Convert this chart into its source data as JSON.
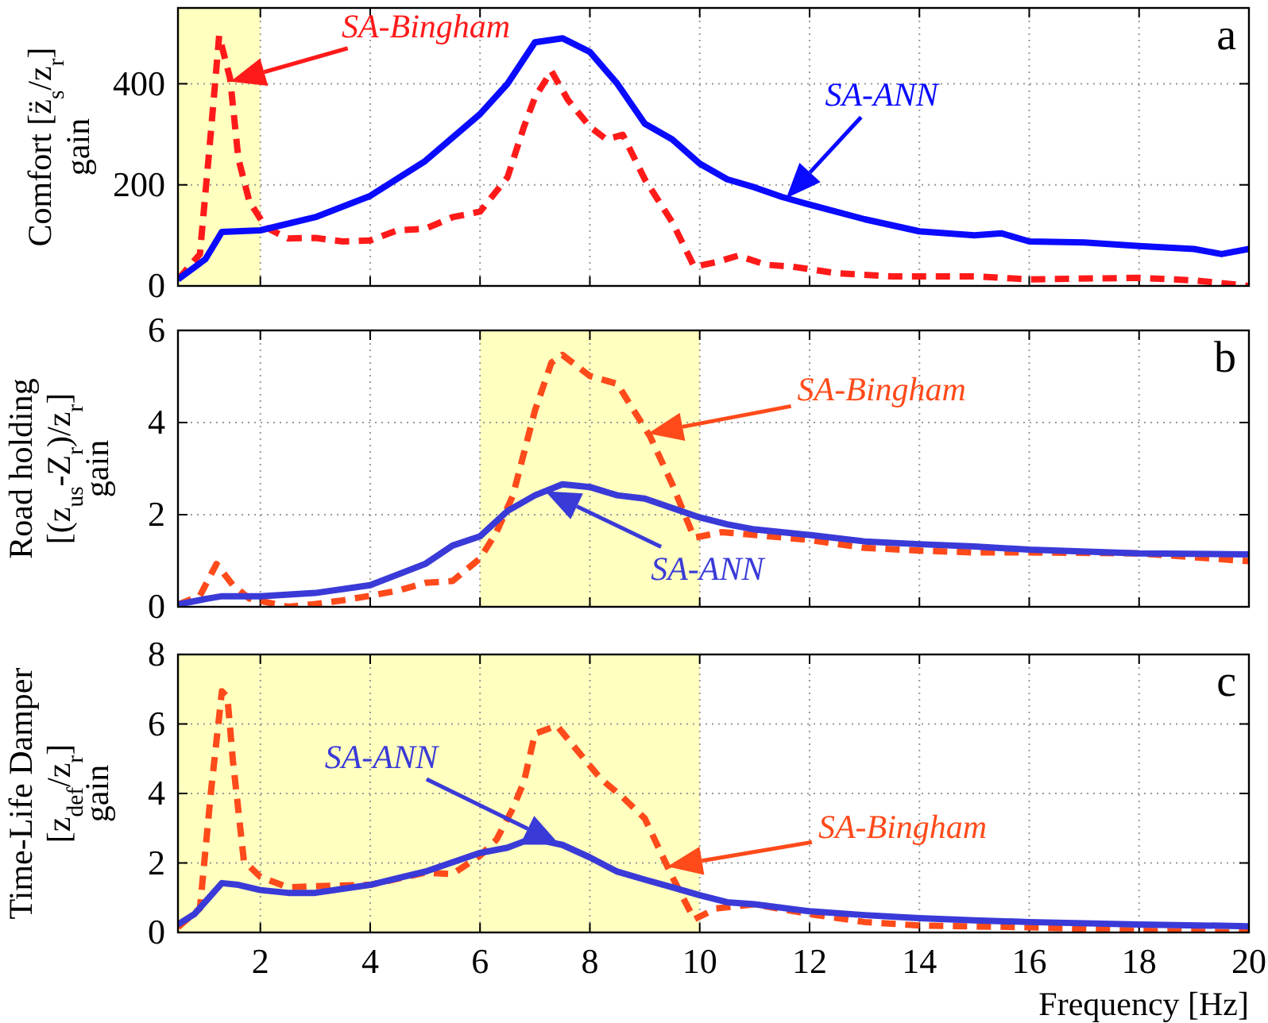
{
  "chart_data": [
    {
      "type": "line",
      "title": "a",
      "ylabel": "Comfort [z̈$_{s}$/z$_{r}$]\ngain",
      "xlim": [
        0.5,
        20
      ],
      "xticks": [
        2,
        4,
        6,
        8,
        10,
        12,
        14,
        16,
        18,
        20
      ],
      "ylim": [
        0,
        550
      ],
      "yticks": [
        0,
        200,
        400
      ],
      "grid": true,
      "tick_labels": "y",
      "bands": [
        {
          "axis": "x",
          "from": 0.5,
          "to": 2,
          "color": "#ffffc0"
        }
      ],
      "series": [
        {
          "name": "SA-Bingham",
          "color": "#ff1a1a",
          "line_style": "dashed",
          "x": [
            0.5,
            0.9,
            1.1,
            1.25,
            1.45,
            1.6,
            1.8,
            2.1,
            2.5,
            3,
            3.5,
            4,
            4.5,
            5,
            5.5,
            6,
            6.5,
            6.8,
            7,
            7.3,
            7.6,
            8,
            8.3,
            8.6,
            9,
            9.5,
            9.9,
            10.3,
            10.7,
            11.2,
            11.7,
            12.5,
            13.5,
            15,
            16,
            18,
            19,
            20
          ],
          "values": [
            13,
            63,
            305,
            495,
            410,
            252,
            167,
            116,
            94,
            95,
            88,
            90,
            110,
            113,
            136,
            147,
            215,
            315,
            373,
            425,
            368,
            315,
            290,
            299,
            211,
            126,
            38,
            47,
            60,
            42,
            38,
            25,
            19,
            19,
            13,
            16,
            11,
            0
          ]
        },
        {
          "name": "SA-ANN",
          "color": "#0a0aff",
          "line_style": "solid",
          "x": [
            0.5,
            1,
            1.3,
            2,
            3,
            4,
            5,
            6,
            6.5,
            7,
            7.5,
            8,
            8.5,
            9,
            9.5,
            10,
            10.5,
            11,
            11.5,
            12,
            13,
            14,
            15,
            15.5,
            16,
            17,
            18,
            19,
            19.5,
            20
          ],
          "values": [
            13,
            53,
            107,
            110,
            136,
            178,
            247,
            340,
            400,
            482,
            490,
            463,
            400,
            321,
            290,
            242,
            211,
            195,
            176,
            161,
            132,
            108,
            100,
            104,
            88,
            86,
            79,
            73,
            63,
            73
          ]
        }
      ]
    },
    {
      "type": "line",
      "title": "b",
      "ylabel": "Road holding\n[(z$_{us}$-Z$_{r}$)/z$_{r}$]\ngain",
      "xlim": [
        0.5,
        20
      ],
      "xticks": [
        2,
        4,
        6,
        8,
        10,
        12,
        14,
        16,
        18,
        20
      ],
      "ylim": [
        0,
        6
      ],
      "yticks": [
        0,
        2,
        4,
        6
      ],
      "grid": true,
      "tick_labels": "y",
      "bands": [
        {
          "axis": "x",
          "from": 6,
          "to": 10,
          "color": "#ffffc0"
        }
      ],
      "series": [
        {
          "name": "SA-Bingham",
          "color": "#ff4a1a",
          "line_style": "dashed",
          "x": [
            0.5,
            0.9,
            1.2,
            1.5,
            1.8,
            2.5,
            3,
            3.5,
            4,
            4.5,
            5,
            5.5,
            6,
            6.3,
            6.6,
            6.8,
            7,
            7.3,
            7.5,
            8,
            8.5,
            8.8,
            9.1,
            9.5,
            9.9,
            10.4,
            11,
            12,
            13,
            14,
            15,
            16,
            18,
            20
          ],
          "values": [
            0.05,
            0.24,
            0.93,
            0.47,
            0.18,
            0,
            0.06,
            0.14,
            0.24,
            0.35,
            0.52,
            0.56,
            1.05,
            1.62,
            2.42,
            3.34,
            4.26,
            5.3,
            5.47,
            5.01,
            4.84,
            4.26,
            3.69,
            2.66,
            1.5,
            1.62,
            1.56,
            1.45,
            1.28,
            1.22,
            1.18,
            1.18,
            1.16,
            0.99
          ]
        },
        {
          "name": "SA-ANN",
          "color": "#3a3ad8",
          "line_style": "solid",
          "x": [
            0.5,
            1,
            1.3,
            2,
            3,
            4,
            5,
            5.5,
            6,
            6.5,
            7,
            7.5,
            8,
            8.5,
            9,
            10,
            10.5,
            11,
            12,
            13,
            14,
            15,
            16,
            18,
            20
          ],
          "values": [
            0.05,
            0.17,
            0.23,
            0.23,
            0.3,
            0.47,
            0.93,
            1.33,
            1.53,
            2.08,
            2.42,
            2.66,
            2.6,
            2.42,
            2.35,
            1.94,
            1.79,
            1.68,
            1.56,
            1.42,
            1.36,
            1.31,
            1.24,
            1.16,
            1.14
          ]
        }
      ]
    },
    {
      "type": "line",
      "title": "c",
      "xlabel": "Frequency [Hz]",
      "ylabel": "Time-Life Damper\n[z$_{def}$/z$_{r}$]\ngain",
      "xlim": [
        0.5,
        20
      ],
      "xticks": [
        2,
        4,
        6,
        8,
        10,
        12,
        14,
        16,
        18,
        20
      ],
      "ylim": [
        0,
        8
      ],
      "yticks": [
        0,
        2,
        4,
        6,
        8
      ],
      "grid": true,
      "bands": [
        {
          "axis": "x",
          "from": 0.5,
          "to": 10,
          "color": "#ffffc0"
        }
      ],
      "series": [
        {
          "name": "SA-Bingham",
          "color": "#ff4a1a",
          "line_style": "dashed",
          "x": [
            0.5,
            0.9,
            1.1,
            1.3,
            1.4,
            1.5,
            1.7,
            2,
            2.5,
            3,
            4,
            5,
            5.5,
            6,
            6.3,
            6.6,
            6.8,
            7,
            7.4,
            7.8,
            8.2,
            8.6,
            9,
            9.5,
            9.9,
            10.3,
            11,
            12,
            13,
            14,
            16,
            18,
            20
          ],
          "values": [
            0.15,
            0.69,
            4.04,
            6.94,
            6.78,
            4.95,
            2.06,
            1.6,
            1.3,
            1.33,
            1.37,
            1.72,
            1.68,
            2.21,
            2.67,
            3.58,
            4.34,
            5.72,
            5.95,
            5.18,
            4.42,
            3.89,
            3.28,
            1.6,
            0.38,
            0.69,
            0.81,
            0.53,
            0.3,
            0.2,
            0.15,
            0.05,
            0
          ]
        },
        {
          "name": "SA-ANN",
          "color": "#3a3ad8",
          "line_style": "solid",
          "x": [
            0.5,
            0.8,
            1.3,
            1.6,
            2,
            2.5,
            3,
            4,
            5,
            6,
            6.5,
            6.8,
            7.2,
            7.5,
            8,
            8.5,
            9,
            9.5,
            10,
            10.5,
            11,
            12,
            13,
            14,
            15,
            16,
            18,
            20
          ],
          "values": [
            0.23,
            0.53,
            1.42,
            1.37,
            1.22,
            1.14,
            1.14,
            1.37,
            1.75,
            2.29,
            2.44,
            2.62,
            2.62,
            2.52,
            2.16,
            1.75,
            1.52,
            1.3,
            1.07,
            0.87,
            0.81,
            0.61,
            0.5,
            0.41,
            0.35,
            0.3,
            0.23,
            0.18
          ]
        }
      ]
    }
  ]
}
